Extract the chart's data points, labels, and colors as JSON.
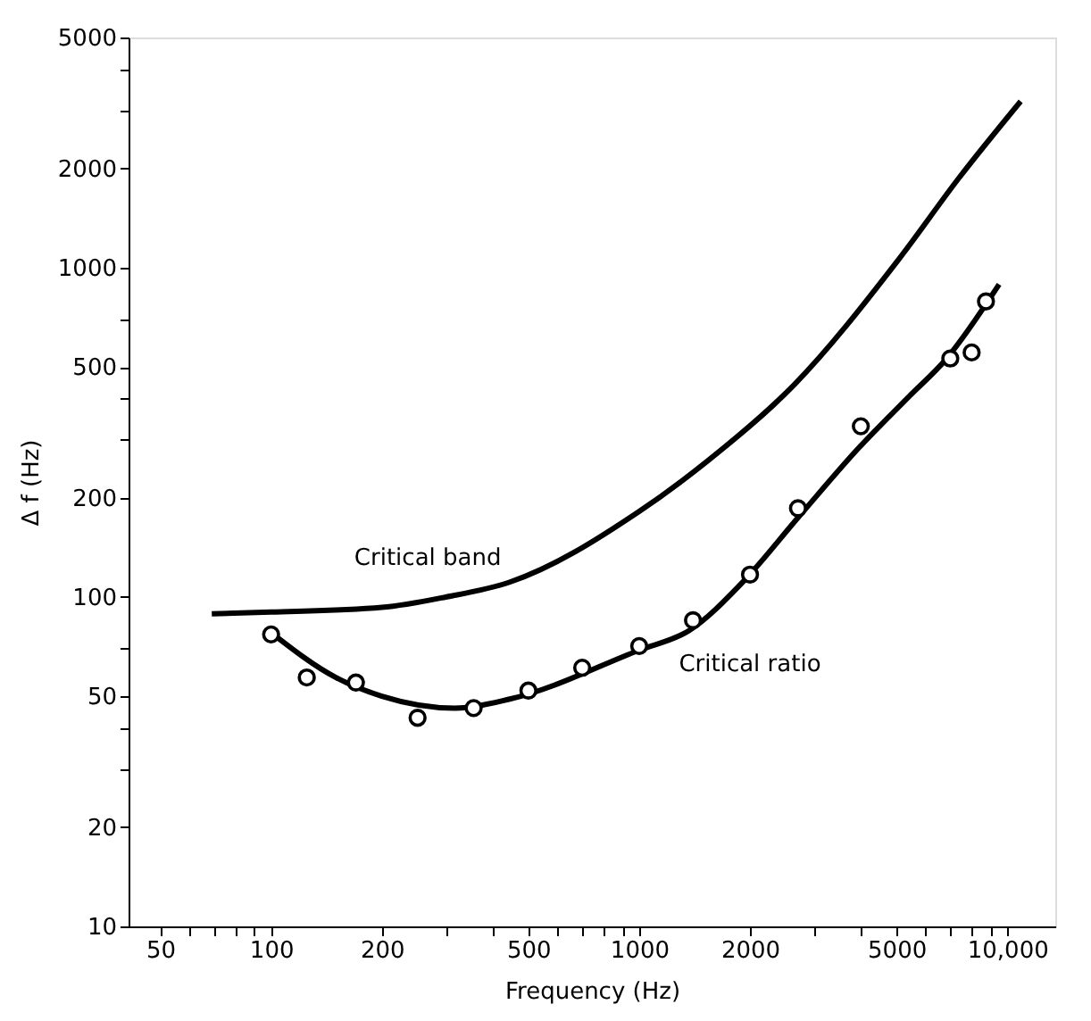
{
  "chart_data": {
    "type": "line",
    "xlabel": "Frequency (Hz)",
    "ylabel": "Δ f (Hz)",
    "log": "xy",
    "grid": false,
    "xlim": [
      41,
      13500
    ],
    "ylim": [
      10,
      5000
    ],
    "xticks": [
      50,
      {
        "value": 60,
        "label": null
      },
      {
        "value": 70,
        "label": null
      },
      {
        "value": 80,
        "label": null
      },
      {
        "value": 90,
        "label": null
      },
      100,
      200,
      {
        "value": 300,
        "label": null
      },
      {
        "value": 400,
        "label": null
      },
      500,
      {
        "value": 600,
        "label": null
      },
      {
        "value": 700,
        "label": null
      },
      {
        "value": 800,
        "label": null
      },
      {
        "value": 900,
        "label": null
      },
      1000,
      2000,
      {
        "value": 3000,
        "label": null
      },
      {
        "value": 4000,
        "label": null
      },
      5000,
      {
        "value": 6000,
        "label": null
      },
      {
        "value": 7000,
        "label": null
      },
      {
        "value": 8000,
        "label": null
      },
      {
        "value": 9000,
        "label": null
      },
      {
        "value": 10000,
        "label": "10,000"
      }
    ],
    "yticks": [
      10,
      20,
      {
        "value": 30,
        "label": null
      },
      {
        "value": 40,
        "label": null
      },
      50,
      {
        "value": 70,
        "label": null
      },
      100,
      200,
      {
        "value": 300,
        "label": null
      },
      {
        "value": 400,
        "label": null
      },
      500,
      {
        "value": 700,
        "label": null
      },
      1000,
      2000,
      {
        "value": 3000,
        "label": null
      },
      {
        "value": 4000,
        "label": null
      },
      5000
    ],
    "series": [
      {
        "name": "Critical band",
        "color": "#000000",
        "marker": "none",
        "line_style": "solid",
        "x": [
          69,
          100,
          200,
          298,
          445,
          1000,
          1540,
          2640,
          5070,
          7410,
          10870
        ],
        "values": [
          89,
          90,
          93,
          100,
          111,
          182,
          260,
          442,
          1060,
          1880,
          3200
        ]
      },
      {
        "name": "Critical ratio",
        "color": "#000000",
        "marker": "none",
        "line_style": "solid",
        "x": [
          100,
          150,
          200,
          316,
          445,
          1000,
          1364,
          1925,
          2710,
          3940,
          5330,
          6840,
          9500
        ],
        "values": [
          78,
          57,
          50,
          46,
          49,
          69,
          79,
          112,
          175,
          283,
          400,
          530,
          890
        ]
      },
      {
        "type": "scatter",
        "color": "#000000",
        "marker": "circle",
        "x": [
          100,
          125,
          170,
          250,
          355,
          500,
          700,
          1000,
          1400,
          2000,
          2700,
          4000,
          7000,
          8000,
          8750
        ],
        "values": [
          77,
          57,
          55,
          43,
          46,
          52,
          61,
          71,
          85,
          117,
          186,
          330,
          530,
          553,
          790
        ]
      }
    ]
  }
}
